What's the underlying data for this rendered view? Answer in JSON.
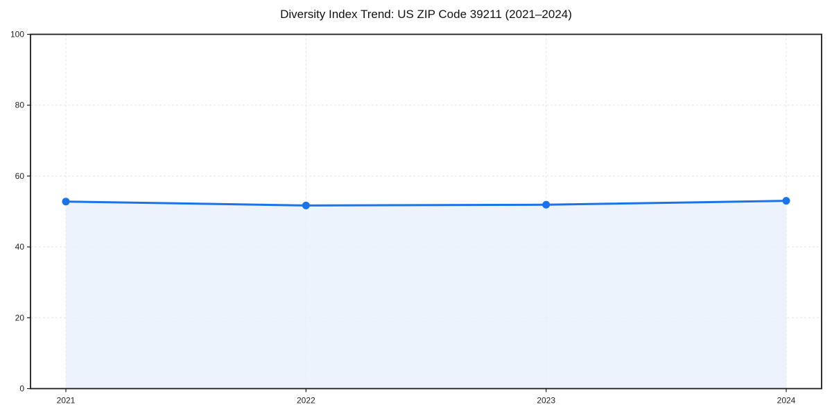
{
  "chart_data": {
    "type": "line",
    "title": "Diversity Index Trend: US ZIP Code 39211 (2021–2024)",
    "x": [
      "2021",
      "2022",
      "2023",
      "2024"
    ],
    "values": [
      52.8,
      51.7,
      51.9,
      53.0
    ],
    "xlabel": "",
    "ylabel": "",
    "ylim": [
      0,
      100
    ],
    "yticks": [
      0,
      20,
      40,
      60,
      80,
      100
    ],
    "grid": true,
    "grid_style": "dashed",
    "legend": "none",
    "area_fill": true,
    "marker": "circle",
    "colors": {
      "line": "#1a73e8",
      "fill": "#e8f0fc",
      "grid": "#e3e3e3",
      "spine": "#1a1a1a",
      "tick_label": "#1f1f1f",
      "title": "#111111",
      "background": "#ffffff"
    }
  }
}
